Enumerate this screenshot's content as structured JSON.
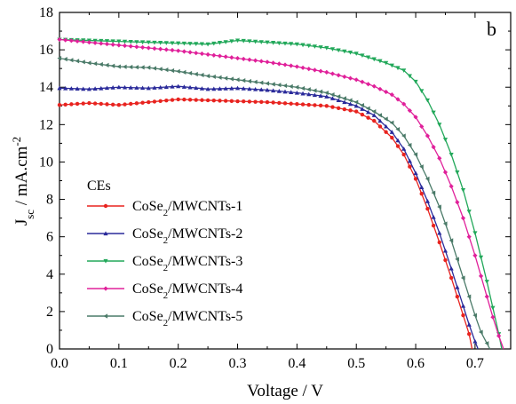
{
  "chart_data": {
    "type": "line",
    "panel_label": "b",
    "xlabel": "Voltage / V",
    "ylabel": {
      "main": "J",
      "sub": "sc",
      "rest": " / mA.cm",
      "sup": "-2"
    },
    "xlim": [
      0.0,
      0.76
    ],
    "ylim": [
      0,
      18
    ],
    "xticks": [
      "0.0",
      "0.1",
      "0.2",
      "0.3",
      "0.4",
      "0.5",
      "0.6",
      "0.7"
    ],
    "yticks": [
      "0",
      "2",
      "4",
      "6",
      "8",
      "10",
      "12",
      "14",
      "16",
      "18"
    ],
    "grid": false,
    "legend": {
      "title": "CEs",
      "placement": "lower-left"
    },
    "series": [
      {
        "name": "CoSe2/MWCNTs-1",
        "label": {
          "pre": "CoSe",
          "sub": "2",
          "post": "/MWCNTs-1"
        },
        "color": "#e8231f",
        "marker": "circle",
        "x": [
          0.0,
          0.05,
          0.1,
          0.15,
          0.2,
          0.25,
          0.3,
          0.35,
          0.4,
          0.45,
          0.5,
          0.53,
          0.56,
          0.58,
          0.6,
          0.62,
          0.64,
          0.66,
          0.68,
          0.69,
          0.695
        ],
        "y": [
          13.05,
          13.15,
          13.05,
          13.2,
          13.35,
          13.3,
          13.25,
          13.2,
          13.1,
          13.0,
          12.7,
          12.2,
          11.3,
          10.4,
          9.1,
          7.5,
          5.7,
          3.8,
          1.8,
          0.8,
          0.0
        ]
      },
      {
        "name": "CoSe2/MWCNTs-2",
        "label": {
          "pre": "CoSe",
          "sub": "2",
          "post": "/MWCNTs-2"
        },
        "color": "#2a2a9a",
        "marker": "triangle-up",
        "x": [
          0.0,
          0.05,
          0.1,
          0.15,
          0.2,
          0.25,
          0.3,
          0.35,
          0.4,
          0.45,
          0.5,
          0.53,
          0.56,
          0.58,
          0.6,
          0.62,
          0.64,
          0.66,
          0.68,
          0.69,
          0.7,
          0.705
        ],
        "y": [
          13.95,
          13.9,
          14.0,
          13.95,
          14.05,
          13.9,
          13.95,
          13.85,
          13.7,
          13.5,
          13.0,
          12.5,
          11.6,
          10.7,
          9.4,
          7.9,
          6.2,
          4.3,
          2.3,
          1.3,
          0.4,
          0.0
        ]
      },
      {
        "name": "CoSe2/MWCNTs-3",
        "label": {
          "pre": "CoSe",
          "sub": "2",
          "post": "/MWCNTs-3"
        },
        "color": "#22a85a",
        "marker": "triangle-down",
        "x": [
          0.0,
          0.05,
          0.1,
          0.15,
          0.2,
          0.25,
          0.3,
          0.35,
          0.4,
          0.45,
          0.5,
          0.55,
          0.58,
          0.6,
          0.62,
          0.64,
          0.66,
          0.68,
          0.7,
          0.72,
          0.73,
          0.74,
          0.745
        ],
        "y": [
          16.55,
          16.5,
          16.45,
          16.4,
          16.35,
          16.3,
          16.5,
          16.4,
          16.3,
          16.1,
          15.8,
          15.3,
          14.9,
          14.3,
          13.3,
          12.0,
          10.4,
          8.5,
          6.2,
          3.6,
          2.2,
          0.8,
          0.0
        ]
      },
      {
        "name": "CoSe2/MWCNTs-4",
        "label": {
          "pre": "CoSe",
          "sub": "2",
          "post": "/MWCNTs-4"
        },
        "color": "#e0209a",
        "marker": "diamond",
        "x": [
          0.0,
          0.05,
          0.1,
          0.15,
          0.2,
          0.25,
          0.3,
          0.35,
          0.4,
          0.45,
          0.5,
          0.53,
          0.56,
          0.58,
          0.6,
          0.62,
          0.64,
          0.66,
          0.68,
          0.7,
          0.72,
          0.73,
          0.74,
          0.748
        ],
        "y": [
          16.55,
          16.4,
          16.25,
          16.1,
          15.95,
          15.75,
          15.55,
          15.35,
          15.1,
          14.8,
          14.4,
          14.05,
          13.6,
          13.1,
          12.4,
          11.4,
          10.2,
          8.7,
          7.0,
          5.0,
          2.8,
          1.7,
          0.7,
          0.0
        ]
      },
      {
        "name": "CoSe2/MWCNTs-5",
        "label": {
          "pre": "CoSe",
          "sub": "2",
          "post": "/MWCNTs-5"
        },
        "color": "#4a7a68",
        "marker": "triangle-left",
        "x": [
          0.0,
          0.05,
          0.1,
          0.15,
          0.2,
          0.25,
          0.3,
          0.35,
          0.4,
          0.45,
          0.5,
          0.53,
          0.56,
          0.58,
          0.6,
          0.62,
          0.64,
          0.66,
          0.68,
          0.7,
          0.71,
          0.72,
          0.725
        ],
        "y": [
          15.55,
          15.3,
          15.1,
          15.05,
          14.85,
          14.6,
          14.4,
          14.2,
          14.0,
          13.7,
          13.2,
          12.7,
          12.1,
          11.4,
          10.4,
          9.1,
          7.6,
          5.8,
          3.8,
          1.8,
          0.9,
          0.3,
          0.0
        ]
      }
    ]
  }
}
